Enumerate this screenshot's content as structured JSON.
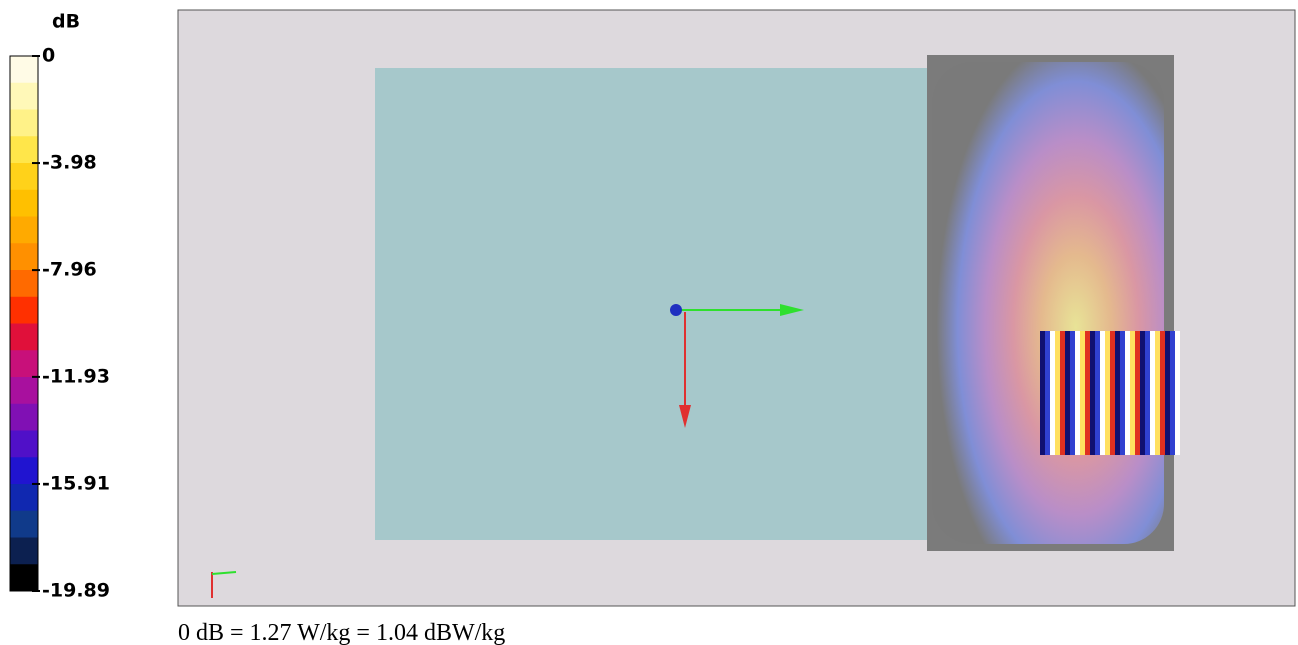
{
  "legend": {
    "unit": "dB",
    "ticks": [
      0,
      -3.98,
      -7.96,
      -11.93,
      -15.91,
      -19.89
    ],
    "colors": [
      "#fffbe6",
      "#fff8b8",
      "#fff288",
      "#ffe64a",
      "#ffd21a",
      "#ffc000",
      "#ffaa00",
      "#ff9000",
      "#ff6a00",
      "#ff3000",
      "#e0103a",
      "#c8107a",
      "#a8109e",
      "#8010b4",
      "#5010c8",
      "#2014d0",
      "#1028b0",
      "#103a8a",
      "#0c2050",
      "#000000"
    ]
  },
  "caption": "0 dB = 1.27 W/kg = 1.04 dBW/kg"
}
